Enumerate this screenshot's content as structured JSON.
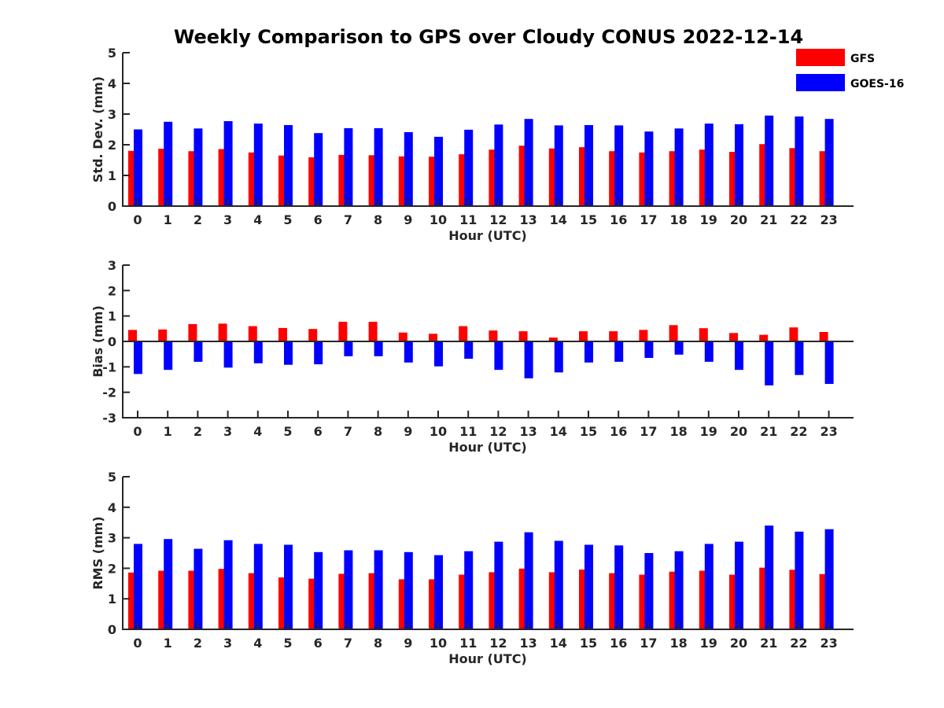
{
  "chart_data": {
    "title": "Weekly Comparison to GPS over Cloudy CONUS 2022-12-14",
    "legend": {
      "placement": "top-right",
      "entries": [
        {
          "name": "GFS",
          "color": "#ff0000"
        },
        {
          "name": "GOES-16",
          "color": "#0000ff"
        }
      ]
    },
    "panels": [
      {
        "type": "bar",
        "xlabel": "Hour (UTC)",
        "ylabel": "Std. Dev. (mm)",
        "ylim": [
          0,
          5
        ],
        "yticks": [
          0,
          1,
          2,
          3,
          4,
          5
        ],
        "categories": [
          "0",
          "1",
          "2",
          "3",
          "4",
          "5",
          "6",
          "7",
          "8",
          "9",
          "10",
          "11",
          "12",
          "13",
          "14",
          "15",
          "16",
          "17",
          "18",
          "19",
          "20",
          "21",
          "22",
          "23"
        ],
        "series": [
          {
            "name": "GFS",
            "color": "#ff0000",
            "values": [
              1.8,
              1.87,
              1.79,
              1.86,
              1.75,
              1.65,
              1.59,
              1.67,
              1.66,
              1.62,
              1.61,
              1.69,
              1.84,
              1.97,
              1.88,
              1.92,
              1.79,
              1.75,
              1.79,
              1.84,
              1.77,
              2.02,
              1.89,
              1.79
            ]
          },
          {
            "name": "GOES-16",
            "color": "#0000ff",
            "values": [
              2.5,
              2.75,
              2.53,
              2.77,
              2.69,
              2.64,
              2.38,
              2.54,
              2.54,
              2.41,
              2.26,
              2.49,
              2.66,
              2.84,
              2.63,
              2.64,
              2.63,
              2.43,
              2.53,
              2.69,
              2.67,
              2.95,
              2.92,
              2.84
            ]
          }
        ]
      },
      {
        "type": "bar",
        "xlabel": "Hour (UTC)",
        "ylabel": "Bias (mm)",
        "ylim": [
          -3,
          3
        ],
        "yticks": [
          -3,
          -2,
          -1,
          0,
          1,
          2,
          3
        ],
        "zero_line": true,
        "categories": [
          "0",
          "1",
          "2",
          "3",
          "4",
          "5",
          "6",
          "7",
          "8",
          "9",
          "10",
          "11",
          "12",
          "13",
          "14",
          "15",
          "16",
          "17",
          "18",
          "19",
          "20",
          "21",
          "22",
          "23"
        ],
        "series": [
          {
            "name": "GFS",
            "color": "#ff0000",
            "values": [
              0.45,
              0.47,
              0.68,
              0.7,
              0.6,
              0.53,
              0.49,
              0.77,
              0.77,
              0.35,
              0.3,
              0.6,
              0.43,
              0.4,
              0.15,
              0.4,
              0.4,
              0.45,
              0.64,
              0.52,
              0.33,
              0.26,
              0.55,
              0.37
            ]
          },
          {
            "name": "GOES-16",
            "color": "#0000ff",
            "values": [
              -1.28,
              -1.12,
              -0.8,
              -1.03,
              -0.86,
              -0.92,
              -0.9,
              -0.58,
              -0.58,
              -0.83,
              -0.98,
              -0.68,
              -1.12,
              -1.45,
              -1.22,
              -0.83,
              -0.8,
              -0.65,
              -0.52,
              -0.8,
              -1.12,
              -1.73,
              -1.32,
              -1.67
            ]
          }
        ]
      },
      {
        "type": "bar",
        "xlabel": "Hour (UTC)",
        "ylabel": "RMS (mm)",
        "ylim": [
          0,
          5
        ],
        "yticks": [
          0,
          1,
          2,
          3,
          4,
          5
        ],
        "categories": [
          "0",
          "1",
          "2",
          "3",
          "4",
          "5",
          "6",
          "7",
          "8",
          "9",
          "10",
          "11",
          "12",
          "13",
          "14",
          "15",
          "16",
          "17",
          "18",
          "19",
          "20",
          "21",
          "22",
          "23"
        ],
        "series": [
          {
            "name": "GFS",
            "color": "#ff0000",
            "values": [
              1.86,
              1.92,
              1.92,
              1.98,
              1.84,
              1.7,
              1.66,
              1.82,
              1.84,
              1.64,
              1.64,
              1.79,
              1.87,
              1.99,
              1.87,
              1.96,
              1.84,
              1.79,
              1.89,
              1.92,
              1.79,
              2.02,
              1.95,
              1.81
            ]
          },
          {
            "name": "GOES-16",
            "color": "#0000ff",
            "values": [
              2.8,
              2.96,
              2.64,
              2.92,
              2.8,
              2.77,
              2.53,
              2.59,
              2.59,
              2.53,
              2.43,
              2.56,
              2.87,
              3.18,
              2.9,
              2.77,
              2.75,
              2.5,
              2.56,
              2.8,
              2.87,
              3.4,
              3.2,
              3.28
            ]
          }
        ]
      }
    ]
  }
}
